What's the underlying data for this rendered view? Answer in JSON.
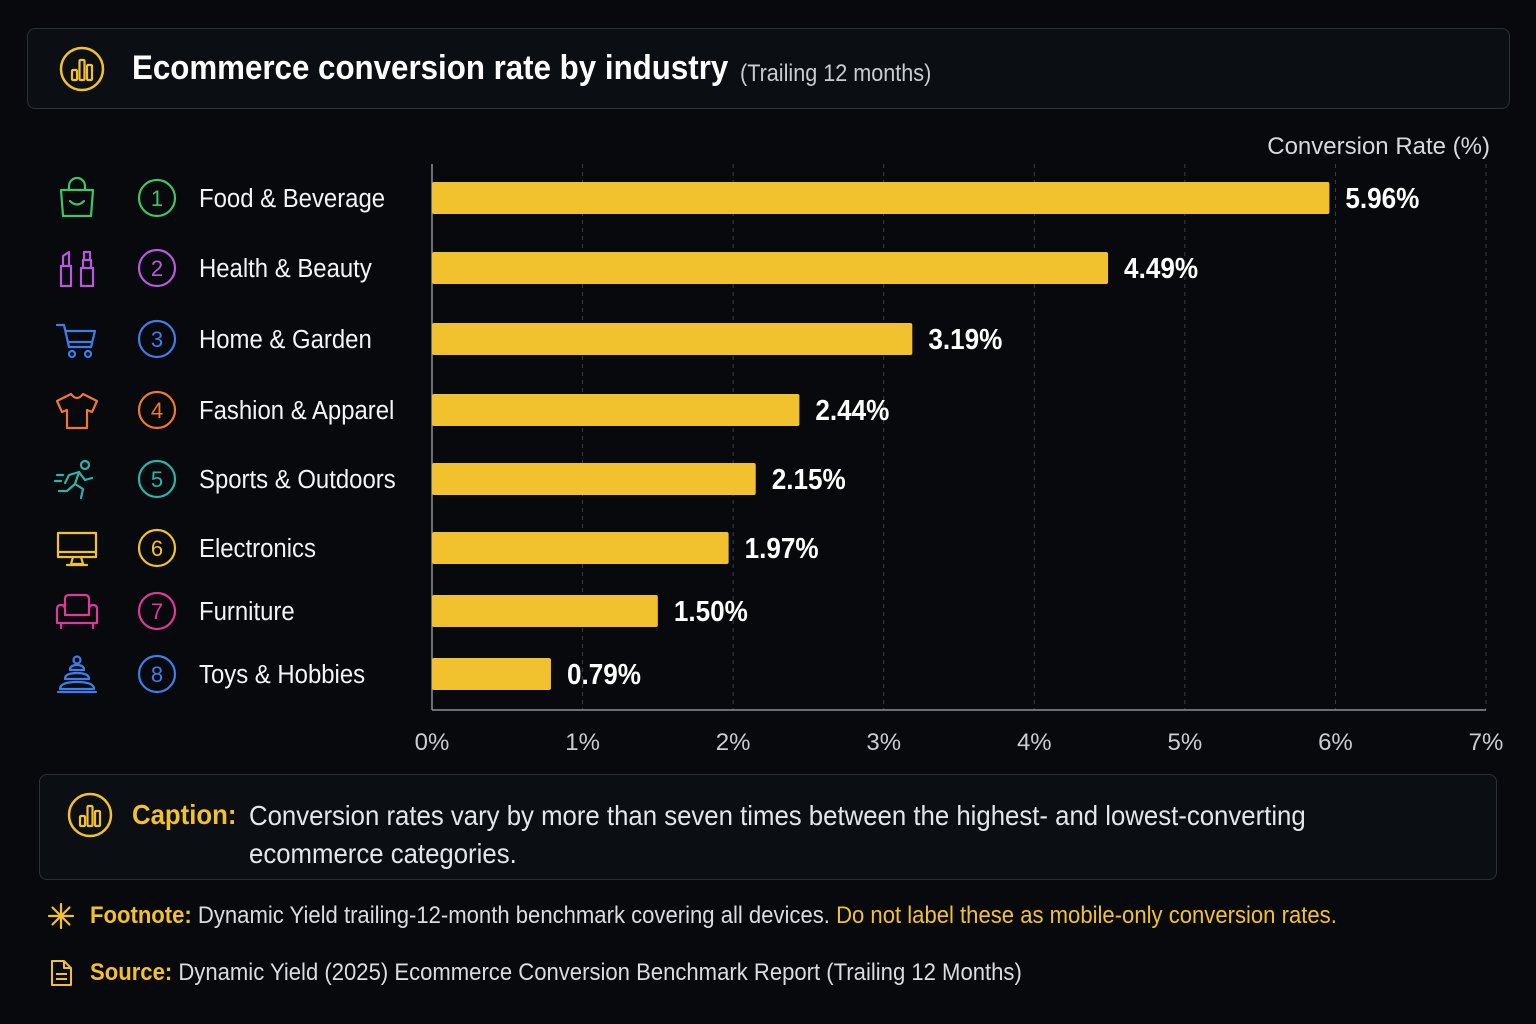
{
  "header": {
    "title": "Ecommerce conversion rate by industry",
    "subtitle": "(Trailing 12 months)",
    "icon": "bar-chart-icon"
  },
  "chart_data": {
    "type": "bar",
    "orientation": "horizontal",
    "xlabel": "Conversion Rate (%)",
    "xlim": [
      0,
      7
    ],
    "xticks": [
      "0%",
      "1%",
      "2%",
      "3%",
      "4%",
      "5%",
      "6%",
      "7%"
    ],
    "grid": true,
    "bar_color": "#f2c12e",
    "categories": [
      {
        "rank": "1",
        "label": "Food & Beverage",
        "value": 5.96,
        "value_label": "5.96%",
        "icon": "shopping-bag-icon",
        "color": "#3fc46a"
      },
      {
        "rank": "2",
        "label": "Health & Beauty",
        "value": 4.49,
        "value_label": "4.49%",
        "icon": "cosmetics-icon",
        "color": "#b65bdc"
      },
      {
        "rank": "3",
        "label": "Home & Garden",
        "value": 3.19,
        "value_label": "3.19%",
        "icon": "shopping-cart-icon",
        "color": "#3f7ee8"
      },
      {
        "rank": "4",
        "label": "Fashion & Apparel",
        "value": 2.44,
        "value_label": "2.44%",
        "icon": "tshirt-icon",
        "color": "#f07a2a"
      },
      {
        "rank": "5",
        "label": "Sports & Outdoors",
        "value": 2.15,
        "value_label": "2.15%",
        "icon": "runner-icon",
        "color": "#2db3a8"
      },
      {
        "rank": "6",
        "label": "Electronics",
        "value": 1.97,
        "value_label": "1.97%",
        "icon": "monitor-icon",
        "color": "#f2c12e"
      },
      {
        "rank": "7",
        "label": "Furniture",
        "value": 1.5,
        "value_label": "1.50%",
        "icon": "armchair-icon",
        "color": "#e0399a"
      },
      {
        "rank": "8",
        "label": "Toys & Hobbies",
        "value": 0.79,
        "value_label": "0.79%",
        "icon": "stacking-toy-icon",
        "color": "#3f7ee8"
      }
    ]
  },
  "caption": {
    "label": "Caption:",
    "text": "Conversion rates vary by more than seven times between the highest- and lowest-converting ecommerce categories."
  },
  "footnote": {
    "label": "Footnote:",
    "text": "Dynamic Yield trailing-12-month benchmark covering all devices.",
    "warning": "Do not label these as mobile-only conversion rates.",
    "icon": "asterisk-icon"
  },
  "source": {
    "label": "Source:",
    "text": "Dynamic Yield (2025) Ecommerce Conversion Benchmark Report (Trailing 12 Months)",
    "icon": "document-icon"
  }
}
